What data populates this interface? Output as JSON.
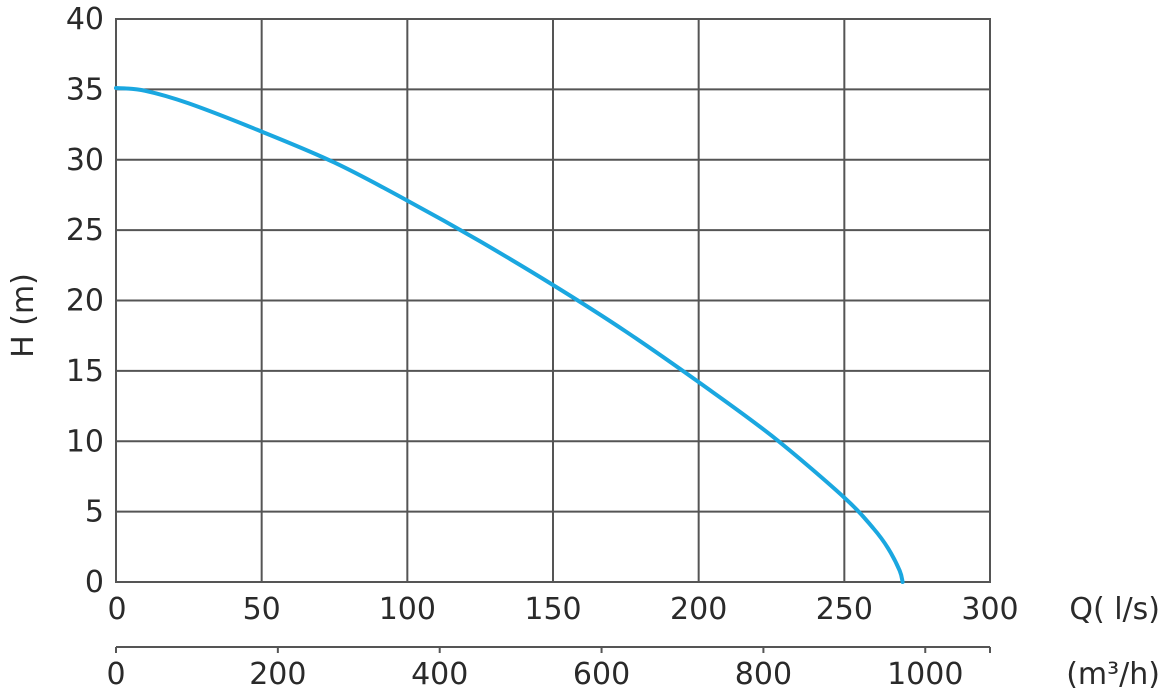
{
  "chart_data": {
    "type": "line",
    "title": "",
    "ylabel": "H (m)",
    "xlabel": "Q( l/s)",
    "x2label": "(m³/h)",
    "xlim": [
      0,
      300
    ],
    "ylim": [
      0,
      40
    ],
    "x2lim": [
      0,
      1080
    ],
    "grid": true,
    "line_color": "#1aa7e0",
    "x_ticks": [
      0,
      50,
      100,
      150,
      200,
      250,
      300
    ],
    "y_ticks": [
      0,
      5,
      10,
      15,
      20,
      25,
      30,
      35,
      40
    ],
    "x2_ticks": [
      0,
      200,
      400,
      600,
      800,
      1000
    ],
    "series": [
      {
        "x": [
          0,
          10,
          25,
          50,
          75,
          100,
          125,
          150,
          175,
          200,
          225,
          250,
          260,
          265,
          269,
          270
        ],
        "y": [
          35.1,
          34.9,
          34.0,
          32.0,
          29.8,
          27.1,
          24.2,
          21.1,
          17.8,
          14.2,
          10.4,
          6.0,
          3.8,
          2.4,
          0.8,
          0
        ]
      }
    ]
  }
}
